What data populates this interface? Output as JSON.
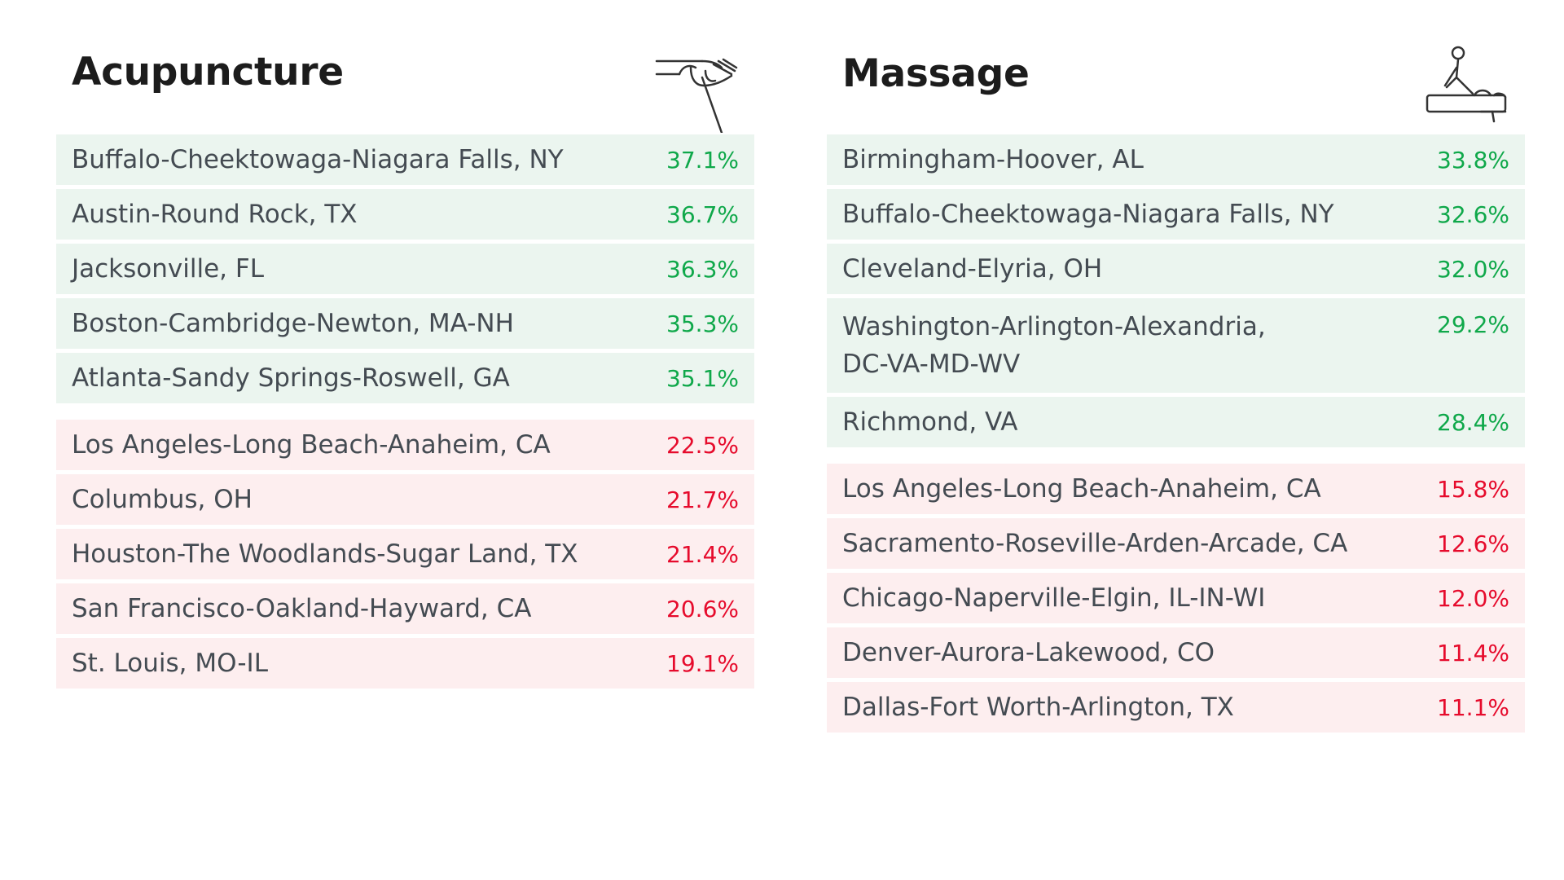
{
  "chart_data": [
    {
      "type": "table",
      "title": "Acupuncture",
      "icon": "acupuncture-hand-needle-icon",
      "colors": {
        "top": "#0fa84a",
        "bottom": "#e60b2c",
        "top_bg": "#ebf5ef",
        "bottom_bg": "#fdeeef"
      },
      "top": [
        {
          "city": "Buffalo-Cheektowaga-Niagara Falls, NY",
          "value": "37.1%"
        },
        {
          "city": "Austin-Round Rock, TX",
          "value": "36.7%"
        },
        {
          "city": "Jacksonville, FL",
          "value": "36.3%"
        },
        {
          "city": "Boston-Cambridge-Newton, MA-NH",
          "value": "35.3%"
        },
        {
          "city": "Atlanta-Sandy Springs-Roswell, GA",
          "value": "35.1%"
        }
      ],
      "bottom": [
        {
          "city": "Los Angeles-Long Beach-Anaheim, CA",
          "value": "22.5%"
        },
        {
          "city": "Columbus, OH",
          "value": "21.7%"
        },
        {
          "city": "Houston-The Woodlands-Sugar Land, TX",
          "value": "21.4%"
        },
        {
          "city": "San Francisco-Oakland-Hayward, CA",
          "value": "20.6%"
        },
        {
          "city": "St. Louis, MO-IL",
          "value": "19.1%"
        }
      ]
    },
    {
      "type": "table",
      "title": "Massage",
      "icon": "massage-table-icon",
      "colors": {
        "top": "#0fa84a",
        "bottom": "#e60b2c",
        "top_bg": "#ebf5ef",
        "bottom_bg": "#fdeeef"
      },
      "top": [
        {
          "city": "Birmingham-Hoover, AL",
          "value": "33.8%"
        },
        {
          "city": "Buffalo-Cheektowaga-Niagara Falls, NY",
          "value": "32.6%"
        },
        {
          "city": "Cleveland-Elyria, OH",
          "value": "32.0%"
        },
        {
          "city": "Washington-Arlington-Alexandria, DC-VA-MD-WV",
          "value": "29.2%"
        },
        {
          "city": "Richmond, VA",
          "value": "28.4%"
        }
      ],
      "bottom": [
        {
          "city": "Los Angeles-Long Beach-Anaheim, CA",
          "value": "15.8%"
        },
        {
          "city": "Sacramento-Roseville-Arden-Arcade, CA",
          "value": "12.6%"
        },
        {
          "city": "Chicago-Naperville-Elgin, IL-IN-WI",
          "value": "12.0%"
        },
        {
          "city": "Denver-Aurora-Lakewood, CO",
          "value": "11.4%"
        },
        {
          "city": "Dallas-Fort Worth-Arlington, TX",
          "value": "11.1%"
        }
      ]
    }
  ]
}
